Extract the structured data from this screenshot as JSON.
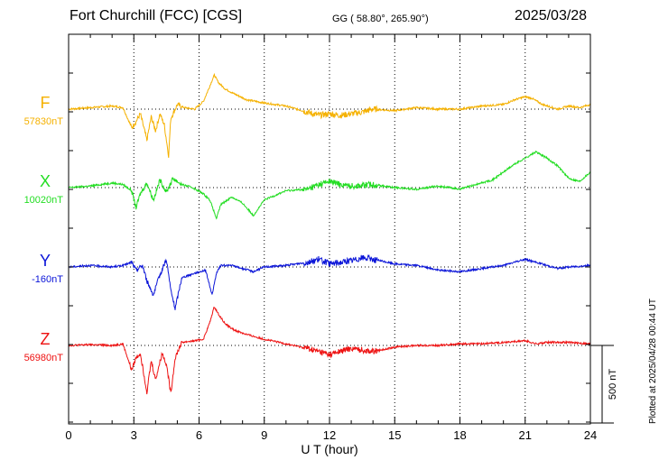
{
  "header": {
    "station": "Fort Churchill (FCC)  [CGS]",
    "coords": "GG ( 58.80°, 265.90°)",
    "date": "2025/03/28"
  },
  "plotted_note": "Plotted at 2025/04/28 00:44 UT",
  "colors": {
    "F": "#f5b100",
    "X": "#22dd22",
    "Y": "#0a14d8",
    "Z": "#ee1111",
    "axis": "#000000"
  },
  "chart_data": {
    "type": "line",
    "xlabel": "U T (hour)",
    "xlim": [
      0,
      24
    ],
    "xticks": [
      0,
      3,
      6,
      9,
      12,
      15,
      18,
      21,
      24
    ],
    "grid": "dotted vertical at 3-hour ticks",
    "scale_bar_label": "500 nT",
    "scale_bar_nT": 500,
    "series": [
      {
        "name": "F",
        "baseline_label": "57830nT",
        "baseline_nT": 57830,
        "x": [
          0,
          1,
          2,
          2.5,
          2.9,
          3.1,
          3.3,
          3.6,
          3.8,
          4.0,
          4.2,
          4.4,
          4.6,
          4.7,
          5.0,
          5.3,
          5.8,
          6.2,
          6.5,
          6.7,
          6.9,
          7.2,
          7.6,
          8.2,
          9,
          10,
          11,
          11.5,
          12,
          12.5,
          13,
          13.5,
          14,
          15,
          16,
          17,
          18,
          19,
          20,
          20.5,
          21,
          21.3,
          21.8,
          22.5,
          23,
          23.5,
          24
        ],
        "y": [
          0,
          10,
          20,
          10,
          -120,
          -80,
          -30,
          -200,
          -50,
          -140,
          -30,
          -100,
          -300,
          -60,
          30,
          10,
          0,
          50,
          150,
          220,
          170,
          130,
          100,
          60,
          40,
          20,
          -20,
          -40,
          -30,
          -40,
          -30,
          -20,
          0,
          -10,
          10,
          0,
          0,
          20,
          30,
          60,
          80,
          70,
          30,
          0,
          20,
          10,
          30
        ]
      },
      {
        "name": "X",
        "baseline_label": "10020nT",
        "baseline_nT": 10020,
        "x": [
          0,
          1,
          2,
          2.5,
          2.9,
          3.1,
          3.3,
          3.6,
          3.9,
          4.2,
          4.5,
          4.8,
          5.2,
          5.7,
          6.2,
          6.5,
          6.8,
          7.0,
          7.5,
          8.0,
          8.5,
          9,
          10,
          11,
          11.5,
          12,
          12.5,
          13,
          14,
          15,
          16,
          17,
          18,
          19,
          19.5,
          20,
          20.5,
          21,
          21.5,
          22,
          22.5,
          23,
          23.5,
          24
        ],
        "y": [
          0,
          10,
          30,
          20,
          -20,
          -130,
          -40,
          30,
          -80,
          50,
          -30,
          60,
          20,
          0,
          -40,
          -80,
          -200,
          -110,
          -60,
          -100,
          -180,
          -80,
          -20,
          -10,
          20,
          40,
          20,
          10,
          20,
          0,
          -10,
          10,
          -10,
          30,
          50,
          100,
          150,
          190,
          230,
          190,
          140,
          60,
          40,
          100
        ]
      },
      {
        "name": "Y",
        "baseline_label": "-160nT",
        "baseline_nT": -160,
        "x": [
          0,
          1,
          2,
          2.5,
          2.9,
          3.1,
          3.4,
          3.6,
          3.9,
          4.2,
          4.5,
          4.7,
          4.9,
          5.2,
          5.8,
          6.3,
          6.6,
          6.8,
          7.0,
          7.5,
          8.0,
          8.5,
          9,
          10,
          11,
          11.5,
          12,
          13,
          13.5,
          14,
          15,
          16,
          17,
          18,
          19,
          20,
          20.5,
          21,
          21.5,
          22,
          22.5,
          23,
          24
        ],
        "y": [
          0,
          10,
          0,
          10,
          30,
          -20,
          10,
          -90,
          -180,
          -50,
          50,
          -150,
          -270,
          -70,
          -40,
          -20,
          -180,
          -40,
          10,
          10,
          -10,
          -30,
          0,
          10,
          30,
          50,
          20,
          40,
          60,
          50,
          20,
          10,
          -20,
          -30,
          -10,
          10,
          30,
          50,
          30,
          10,
          -10,
          0,
          10
        ]
      },
      {
        "name": "Z",
        "baseline_label": "56980nT",
        "baseline_nT": 56980,
        "x": [
          0,
          1,
          2,
          2.5,
          2.9,
          3.1,
          3.3,
          3.6,
          3.8,
          4.0,
          4.3,
          4.5,
          4.7,
          4.9,
          5.2,
          5.8,
          6.2,
          6.5,
          6.7,
          6.9,
          7.2,
          7.6,
          8.2,
          9,
          10,
          11,
          11.5,
          12,
          13,
          14,
          15,
          16,
          17,
          18,
          19,
          20,
          21,
          21.5,
          22,
          23,
          24
        ],
        "y": [
          0,
          5,
          0,
          10,
          -160,
          -80,
          -50,
          -300,
          -100,
          -220,
          -50,
          -120,
          -310,
          -80,
          20,
          30,
          40,
          150,
          250,
          200,
          140,
          100,
          70,
          40,
          10,
          -20,
          -40,
          -60,
          -20,
          -40,
          -10,
          0,
          0,
          10,
          10,
          20,
          30,
          10,
          20,
          20,
          10
        ]
      }
    ]
  }
}
